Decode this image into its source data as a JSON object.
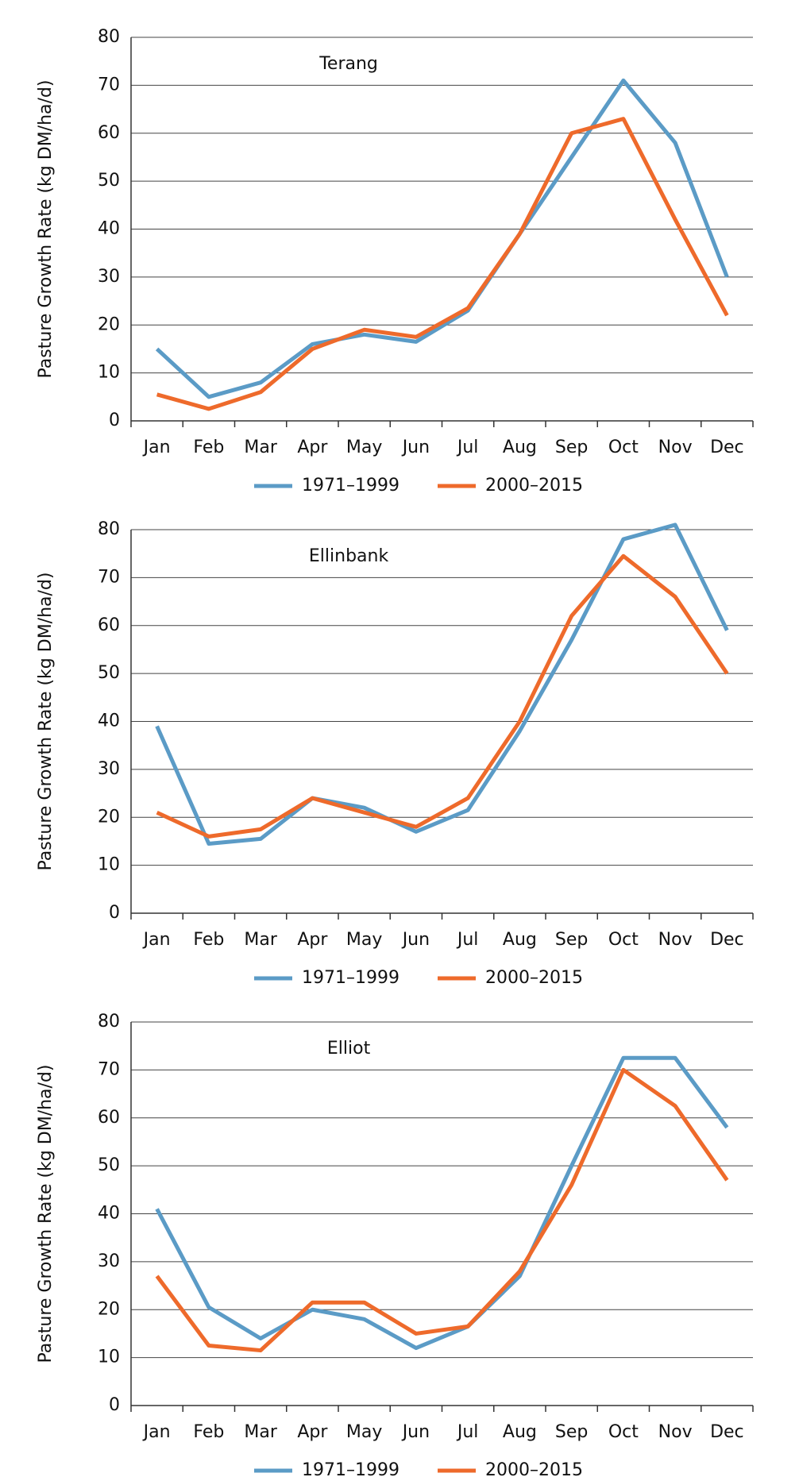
{
  "chart_data": [
    {
      "type": "line",
      "title": "Terang",
      "y_label": "Pasture Growth Rate (kg DM/ha/d)",
      "categories": [
        "Jan",
        "Feb",
        "Mar",
        "Apr",
        "May",
        "Jun",
        "Jul",
        "Aug",
        "Sep",
        "Oct",
        "Nov",
        "Dec"
      ],
      "series": [
        {
          "name": "1971–1999",
          "color": "#5b9bc6",
          "values": [
            15,
            5,
            8,
            16,
            18,
            16.5,
            23,
            39,
            55,
            71,
            58,
            30
          ]
        },
        {
          "name": "2000–2015",
          "color": "#ee6a2b",
          "values": [
            5.5,
            2.5,
            6,
            15,
            19,
            17.5,
            23.5,
            39,
            60,
            63,
            42,
            22
          ]
        }
      ],
      "ylim": [
        0,
        80
      ],
      "yticks": [
        0,
        10,
        20,
        30,
        40,
        50,
        60,
        70,
        80
      ],
      "grid": true
    },
    {
      "type": "line",
      "title": "Ellinbank",
      "y_label": "Pasture Growth Rate (kg DM/ha/d)",
      "categories": [
        "Jan",
        "Feb",
        "Mar",
        "Apr",
        "May",
        "Jun",
        "Jul",
        "Aug",
        "Sep",
        "Oct",
        "Nov",
        "Dec"
      ],
      "series": [
        {
          "name": "1971–1999",
          "color": "#5b9bc6",
          "values": [
            39,
            14.5,
            15.5,
            24,
            22,
            17,
            21.5,
            38,
            57,
            78,
            81,
            59
          ]
        },
        {
          "name": "2000–2015",
          "color": "#ee6a2b",
          "values": [
            21,
            16,
            17.5,
            24,
            21,
            18,
            24,
            40,
            62,
            74.5,
            66,
            50
          ]
        }
      ],
      "ylim": [
        0,
        80
      ],
      "yticks": [
        0,
        10,
        20,
        30,
        40,
        50,
        60,
        70,
        80
      ],
      "grid": true
    },
    {
      "type": "line",
      "title": "Elliot",
      "y_label": "Pasture Growth Rate (kg DM/ha/d)",
      "categories": [
        "Jan",
        "Feb",
        "Mar",
        "Apr",
        "May",
        "Jun",
        "Jul",
        "Aug",
        "Sep",
        "Oct",
        "Nov",
        "Dec"
      ],
      "series": [
        {
          "name": "1971–1999",
          "color": "#5b9bc6",
          "values": [
            41,
            20.5,
            14,
            20,
            18,
            12,
            16.5,
            27,
            50,
            72.5,
            72.5,
            58
          ]
        },
        {
          "name": "2000–2015",
          "color": "#ee6a2b",
          "values": [
            27,
            12.5,
            11.5,
            21.5,
            21.5,
            15,
            16.5,
            28,
            46,
            70,
            62.5,
            47
          ]
        }
      ],
      "ylim": [
        0,
        80
      ],
      "yticks": [
        0,
        10,
        20,
        30,
        40,
        50,
        60,
        70,
        80
      ],
      "grid": true
    }
  ]
}
